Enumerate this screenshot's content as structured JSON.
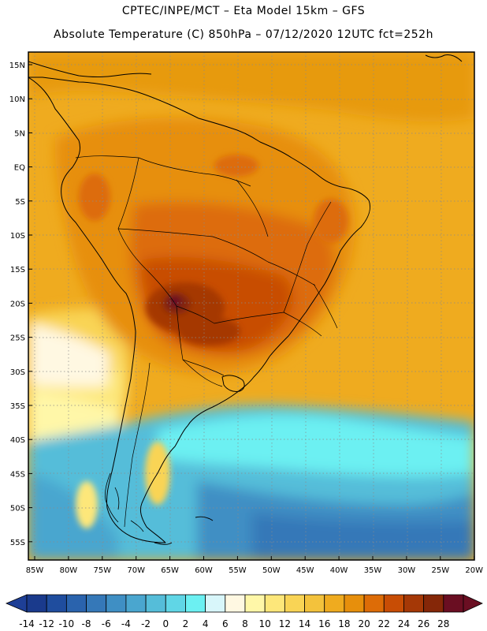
{
  "header": {
    "line1": "CPTEC/INPE/MCT –  Eta Model 15km – GFS",
    "line2": "Absolute Temperature (C) 850hPa – 07/12/2020 12UTC fct=252h"
  },
  "axes": {
    "lat_labels": [
      "15N",
      "10N",
      "5N",
      "EQ",
      "5S",
      "10S",
      "15S",
      "20S",
      "25S",
      "30S",
      "35S",
      "40S",
      "45S",
      "50S",
      "55S"
    ],
    "lon_labels": [
      "85W",
      "80W",
      "75W",
      "70W",
      "65W",
      "60W",
      "55W",
      "50W",
      "45W",
      "40W",
      "35W",
      "30W",
      "25W",
      "20W"
    ]
  },
  "legend": {
    "labels": [
      "-14",
      "-12",
      "-10",
      "-8",
      "-6",
      "-4",
      "-2",
      "0",
      "2",
      "4",
      "6",
      "8",
      "10",
      "12",
      "14",
      "16",
      "18",
      "20",
      "22",
      "24",
      "26",
      "28"
    ],
    "colors": [
      "#1a3a8c",
      "#1f4d9e",
      "#2a63ad",
      "#3578b8",
      "#3f8fc4",
      "#4aa6cf",
      "#55bdd9",
      "#60d6e6",
      "#6cf0f2",
      "#d8f6fa",
      "#fff8e2",
      "#fff7a8",
      "#fde77a",
      "#f9d455",
      "#f3c23c",
      "#efab1f",
      "#e78f0c",
      "#dd6c07",
      "#c84d05",
      "#a53806",
      "#852708",
      "#6a0e22"
    ],
    "under_color": "#1e3f96",
    "over_color": "#6a0e22"
  }
}
